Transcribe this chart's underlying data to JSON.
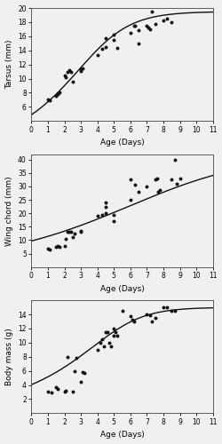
{
  "tarsus": {
    "ylabel": "Tarsus (mm)",
    "ylim": [
      4,
      20
    ],
    "yticks": [
      6,
      8,
      10,
      12,
      14,
      16,
      18,
      20
    ],
    "curve_params": {
      "A": 19.5,
      "k": 0.7,
      "d": 15.0,
      "n": 2.0
    },
    "points": [
      [
        1.0,
        7.0
      ],
      [
        1.1,
        6.9
      ],
      [
        1.5,
        7.5
      ],
      [
        1.6,
        7.8
      ],
      [
        1.7,
        8.0
      ],
      [
        2.0,
        10.5
      ],
      [
        2.1,
        10.2
      ],
      [
        2.2,
        11.0
      ],
      [
        2.3,
        11.2
      ],
      [
        2.4,
        11.0
      ],
      [
        2.5,
        9.5
      ],
      [
        3.0,
        11.1
      ],
      [
        3.0,
        11.3
      ],
      [
        3.1,
        11.5
      ],
      [
        4.0,
        13.3
      ],
      [
        4.3,
        14.2
      ],
      [
        4.5,
        14.5
      ],
      [
        4.5,
        15.7
      ],
      [
        5.0,
        16.2
      ],
      [
        5.0,
        15.5
      ],
      [
        5.2,
        14.4
      ],
      [
        6.0,
        16.5
      ],
      [
        6.2,
        17.5
      ],
      [
        6.3,
        17.5
      ],
      [
        6.5,
        15.0
      ],
      [
        6.5,
        16.8
      ],
      [
        7.0,
        17.5
      ],
      [
        7.1,
        17.3
      ],
      [
        7.2,
        17.0
      ],
      [
        7.3,
        19.5
      ],
      [
        7.5,
        17.8
      ],
      [
        8.0,
        18.2
      ],
      [
        8.2,
        18.5
      ],
      [
        8.5,
        18.0
      ]
    ]
  },
  "wingchord": {
    "ylabel": "Wing chord (mm)",
    "ylim": [
      0,
      42
    ],
    "yticks": [
      5,
      10,
      15,
      20,
      25,
      30,
      35,
      40
    ],
    "curve_params": {
      "A": 42.0,
      "k": 0.28,
      "d": 8.0,
      "n": 1.5
    },
    "points": [
      [
        1.0,
        7.0
      ],
      [
        1.1,
        6.5
      ],
      [
        1.5,
        7.5
      ],
      [
        1.6,
        8.0
      ],
      [
        1.7,
        7.5
      ],
      [
        2.0,
        8.0
      ],
      [
        2.1,
        10.5
      ],
      [
        2.2,
        13.0
      ],
      [
        2.3,
        13.2
      ],
      [
        2.4,
        13.0
      ],
      [
        2.5,
        11.0
      ],
      [
        2.6,
        12.5
      ],
      [
        3.0,
        13.5
      ],
      [
        3.0,
        13.0
      ],
      [
        4.0,
        19.0
      ],
      [
        4.3,
        19.5
      ],
      [
        4.5,
        20.0
      ],
      [
        4.5,
        22.5
      ],
      [
        4.5,
        24.0
      ],
      [
        5.0,
        19.5
      ],
      [
        5.0,
        17.0
      ],
      [
        6.0,
        25.0
      ],
      [
        6.0,
        32.5
      ],
      [
        6.3,
        30.5
      ],
      [
        6.5,
        28.0
      ],
      [
        7.0,
        30.0
      ],
      [
        7.5,
        32.5
      ],
      [
        7.6,
        33.0
      ],
      [
        7.7,
        28.0
      ],
      [
        7.8,
        28.5
      ],
      [
        8.5,
        32.5
      ],
      [
        8.7,
        40.0
      ],
      [
        8.8,
        31.0
      ],
      [
        9.0,
        33.0
      ]
    ]
  },
  "bodymass": {
    "ylabel": "Body mass (g)",
    "ylim": [
      0,
      16
    ],
    "yticks": [
      2,
      4,
      6,
      8,
      10,
      12,
      14
    ],
    "curve_params": {
      "A": 15.0,
      "k": 0.75,
      "d": 50.0,
      "n": 3.0
    },
    "points": [
      [
        1.0,
        3.0
      ],
      [
        1.2,
        2.9
      ],
      [
        1.5,
        3.7
      ],
      [
        1.6,
        3.5
      ],
      [
        2.0,
        3.0
      ],
      [
        2.1,
        3.2
      ],
      [
        2.2,
        8.0
      ],
      [
        2.5,
        3.0
      ],
      [
        2.6,
        6.0
      ],
      [
        2.7,
        7.8
      ],
      [
        3.0,
        4.5
      ],
      [
        3.1,
        5.8
      ],
      [
        3.2,
        5.7
      ],
      [
        4.0,
        9.0
      ],
      [
        4.2,
        10.0
      ],
      [
        4.3,
        10.5
      ],
      [
        4.4,
        9.5
      ],
      [
        4.5,
        11.5
      ],
      [
        4.6,
        11.5
      ],
      [
        4.7,
        10.0
      ],
      [
        4.8,
        9.5
      ],
      [
        5.0,
        12.0
      ],
      [
        5.0,
        11.0
      ],
      [
        5.1,
        11.5
      ],
      [
        5.2,
        11.0
      ],
      [
        5.5,
        14.5
      ],
      [
        6.0,
        13.8
      ],
      [
        6.1,
        13.2
      ],
      [
        6.2,
        13.0
      ],
      [
        7.0,
        14.0
      ],
      [
        7.2,
        13.9
      ],
      [
        7.3,
        13.0
      ],
      [
        7.5,
        13.5
      ],
      [
        8.0,
        15.0
      ],
      [
        8.2,
        15.0
      ],
      [
        8.5,
        14.5
      ],
      [
        8.7,
        14.5
      ]
    ]
  },
  "xlim": [
    0,
    11
  ],
  "xticks": [
    0,
    1,
    2,
    3,
    4,
    5,
    6,
    7,
    8,
    9,
    10,
    11
  ],
  "xlabel": "Age (Days)",
  "dot_color": "#111111",
  "curve_color": "#111111",
  "bg_color": "#f0f0f0"
}
